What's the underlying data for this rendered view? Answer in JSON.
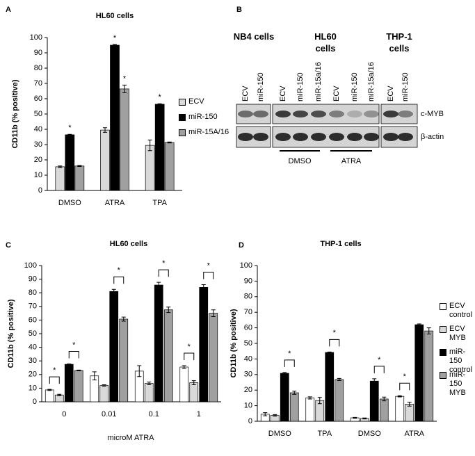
{
  "chart_data": [
    {
      "type": "bar",
      "label": "A",
      "title": "HL60 cells",
      "y_label": "CD11b (% positive)",
      "categories": [
        "DMSO",
        "ATRA",
        "TPA"
      ],
      "series": [
        {
          "name": "ECV",
          "color": "#d9d9d9",
          "values": [
            15.5,
            39.5,
            29.5
          ],
          "errors": [
            0.5,
            1.5,
            3.5
          ]
        },
        {
          "name": "miR-150",
          "color": "#000000",
          "values": [
            36.4,
            95,
            56.4
          ],
          "errors": [
            0.3,
            0.5,
            0.3
          ]
        },
        {
          "name": "miR-15A/16",
          "color": "#a0a0a0",
          "values": [
            16,
            66.4,
            31.4
          ],
          "errors": [
            0.3,
            2.5,
            0.3
          ]
        }
      ],
      "ylim": [
        0,
        100
      ],
      "yticks": [
        0,
        10,
        20,
        30,
        40,
        50,
        60,
        70,
        80,
        90,
        100
      ],
      "grid": false,
      "annotations": [
        "*",
        "*",
        "*",
        "*"
      ]
    },
    {
      "type": "bar",
      "label": "C",
      "title": "HL60 cells",
      "y_label": "CD11b (% positive)",
      "x_label": "microM ATRA",
      "categories": [
        "0",
        "0.01",
        "0.1",
        "1"
      ],
      "series": [
        {
          "color": "#ffffff",
          "values": [
            8.7,
            19,
            22.5,
            25.5
          ],
          "errors": [
            0.4,
            3,
            4,
            1
          ]
        },
        {
          "color": "#d9d9d9",
          "values": [
            5,
            12,
            13.5,
            14
          ],
          "errors": [
            0.5,
            0.5,
            1,
            1.5
          ]
        },
        {
          "color": "#000000",
          "values": [
            27.5,
            81,
            85.7,
            84
          ],
          "errors": [
            0.3,
            1.5,
            2,
            2
          ]
        },
        {
          "color": "#a0a0a0",
          "values": [
            23,
            60.7,
            67.5,
            65
          ],
          "errors": [
            0.3,
            1.5,
            2,
            2.5
          ]
        }
      ],
      "ylim": [
        0,
        100
      ],
      "yticks": [
        0,
        10,
        20,
        30,
        40,
        50,
        60,
        70,
        80,
        90,
        100
      ],
      "grid": false,
      "annotations": [
        "*",
        "*",
        "*",
        "*",
        "*",
        "*"
      ]
    },
    {
      "type": "bar",
      "label": "D",
      "title": "THP-1 cells",
      "y_label": "CD11b (% positive)",
      "categories": [
        "DMSO",
        "TPA",
        "DMSO",
        "ATRA"
      ],
      "series": [
        {
          "name": "ECV control",
          "color": "#ffffff",
          "values": [
            4.5,
            15,
            2.2,
            16
          ],
          "errors": [
            1,
            0.7,
            0.3,
            0.4
          ]
        },
        {
          "name": "ECV MYB",
          "color": "#d9d9d9",
          "values": [
            3.8,
            13.3,
            1.8,
            11
          ],
          "errors": [
            0.5,
            2,
            0.3,
            1.3
          ]
        },
        {
          "name": "miR-150 control",
          "color": "#000000",
          "values": [
            30.8,
            44.2,
            25.8,
            62
          ],
          "errors": [
            0.5,
            0.3,
            1.5,
            0.5
          ]
        },
        {
          "name": "miR-150 MYB",
          "color": "#a0a0a0",
          "values": [
            18.3,
            26.8,
            14.3,
            58
          ],
          "errors": [
            1,
            0.7,
            1.2,
            2
          ]
        }
      ],
      "ylim": [
        0,
        100
      ],
      "yticks": [
        0,
        10,
        20,
        30,
        40,
        50,
        60,
        70,
        80,
        90,
        100
      ],
      "grid": false,
      "annotations": [
        "*",
        "*",
        "*",
        "*"
      ]
    }
  ],
  "blot": {
    "label": "B",
    "groups": [
      {
        "name": "NB4 cells",
        "lanes": [
          "ECV",
          "miR-150"
        ]
      },
      {
        "name": "HL60 cells",
        "lanes": [
          "ECV",
          "miR-150",
          "miR-15a/16",
          "ECV",
          "miR-150",
          "miR-15a/16"
        ]
      },
      {
        "name": "THP-1 cells",
        "lanes": [
          "ECV",
          "miR-150"
        ]
      }
    ],
    "rows": [
      "c-MYB",
      "β-actin"
    ],
    "treatments": [
      "DMSO",
      "ATRA"
    ]
  }
}
